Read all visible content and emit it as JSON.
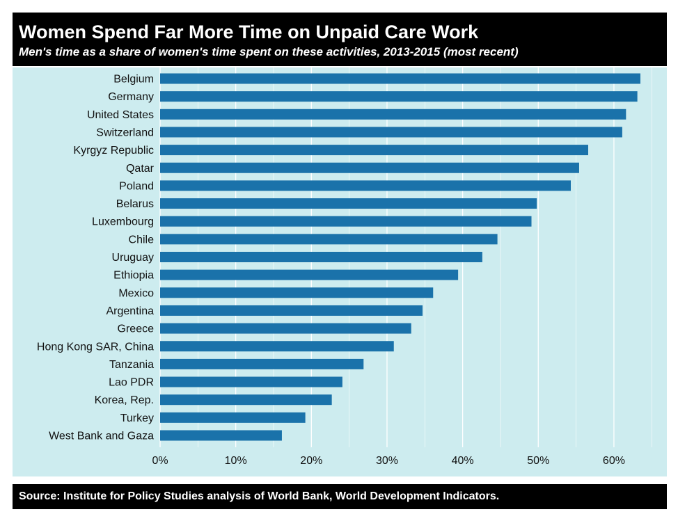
{
  "header": {
    "title": "Women Spend Far More Time on Unpaid Care Work",
    "subtitle": "Men's time as a share of women's time spent on these activities, 2013-2015 (most recent)"
  },
  "footer": {
    "source": "Source: Institute for Policy Studies analysis of World Bank, World Development Indicators."
  },
  "colors": {
    "bar": "#1a72aa",
    "plot_background": "#cdecef",
    "grid": "#ffffff",
    "banner": "#000000"
  },
  "chart_data": {
    "type": "bar",
    "orientation": "horizontal",
    "title": "Women Spend Far More Time on Unpaid Care Work",
    "subtitle": "Men's time as a share of women's time spent on these activities, 2013-2015 (most recent)",
    "xlabel": "",
    "ylabel": "",
    "xlim": [
      0,
      67
    ],
    "grid": true,
    "legend": "none",
    "x_ticks": [
      0,
      10,
      20,
      30,
      40,
      50,
      60
    ],
    "x_tick_labels": [
      "0%",
      "10%",
      "20%",
      "30%",
      "40%",
      "50%",
      "60%"
    ],
    "categories": [
      "Belgium",
      "Germany",
      "United States",
      "Switzerland",
      "Kyrgyz Republic",
      "Qatar",
      "Poland",
      "Belarus",
      "Luxembourg",
      "Chile",
      "Uruguay",
      "Ethiopia",
      "Mexico",
      "Argentina",
      "Greece",
      "Hong Kong SAR, China",
      "Tanzania",
      "Lao PDR",
      "Korea, Rep.",
      "Turkey",
      "West Bank and Gaza"
    ],
    "values": [
      63.5,
      63.1,
      61.6,
      61.1,
      56.6,
      55.4,
      54.3,
      49.8,
      49.1,
      44.6,
      42.6,
      39.4,
      36.1,
      34.7,
      33.2,
      30.9,
      26.9,
      24.1,
      22.7,
      19.2,
      16.1
    ]
  }
}
